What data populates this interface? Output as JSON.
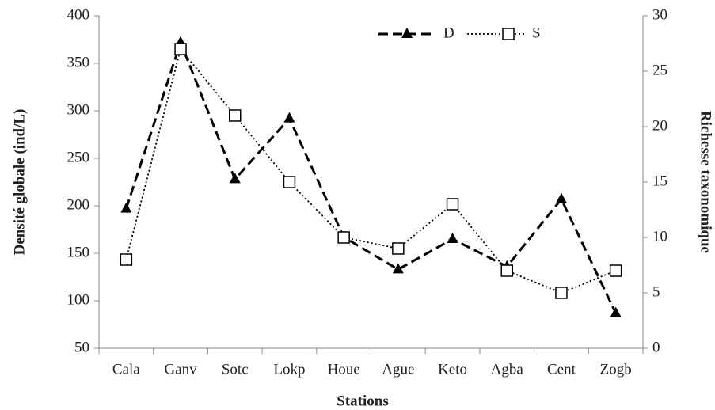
{
  "chart_data": {
    "type": "line",
    "xlabel": "Stations",
    "ylabel": "Densité globale (ind/L)",
    "y2label": "Richesse taxonomique",
    "categories": [
      "Cala",
      "Ganv",
      "Sotc",
      "Lokp",
      "Houe",
      "Ague",
      "Keto",
      "Agba",
      "Cent",
      "Zogb"
    ],
    "series": [
      {
        "name": "D",
        "color": "#000000",
        "line_style": "dashed",
        "marker": "triangle",
        "values": [
          197,
          372,
          228,
          292,
          167,
          133,
          165,
          136,
          207,
          87
        ]
      },
      {
        "name": "S",
        "color": "#000000",
        "line_style": "dotted",
        "marker": "square",
        "axis": "y2",
        "values": [
          8,
          27,
          21,
          15,
          10,
          9,
          13,
          7,
          5,
          7
        ]
      }
    ],
    "ylim": [
      50,
      400
    ],
    "yticks": [
      50,
      100,
      150,
      200,
      250,
      300,
      350,
      400
    ],
    "y2lim": [
      0,
      30
    ],
    "y2ticks": [
      0,
      5,
      10,
      15,
      20,
      25,
      30
    ],
    "legend": "top"
  }
}
